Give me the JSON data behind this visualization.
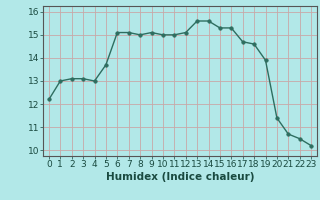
{
  "x": [
    0,
    1,
    2,
    3,
    4,
    5,
    6,
    7,
    8,
    9,
    10,
    11,
    12,
    13,
    14,
    15,
    16,
    17,
    18,
    19,
    20,
    21,
    22,
    23
  ],
  "y": [
    12.2,
    13.0,
    13.1,
    13.1,
    13.0,
    13.7,
    15.1,
    15.1,
    15.0,
    15.1,
    15.0,
    15.0,
    15.1,
    15.6,
    15.6,
    15.3,
    15.3,
    14.7,
    14.6,
    13.9,
    11.4,
    10.7,
    10.5,
    10.2
  ],
  "xlabel": "Humidex (Indice chaleur)",
  "line_color": "#2e6e60",
  "marker_color": "#2e6e60",
  "bg_color": "#b2e8e8",
  "grid_color": "#c8a8a8",
  "ylim": [
    9.75,
    16.25
  ],
  "xlim": [
    -0.5,
    23.5
  ],
  "yticks": [
    10,
    11,
    12,
    13,
    14,
    15,
    16
  ],
  "xticks": [
    0,
    1,
    2,
    3,
    4,
    5,
    6,
    7,
    8,
    9,
    10,
    11,
    12,
    13,
    14,
    15,
    16,
    17,
    18,
    19,
    20,
    21,
    22,
    23
  ],
  "xtick_labels": [
    "0",
    "1",
    "2",
    "3",
    "4",
    "5",
    "6",
    "7",
    "8",
    "9",
    "10",
    "11",
    "12",
    "13",
    "14",
    "15",
    "16",
    "17",
    "18",
    "19",
    "20",
    "21",
    "22",
    "23"
  ],
  "marker_size": 2.5,
  "line_width": 1.0,
  "font_size_label": 7.5,
  "font_size_tick": 6.5
}
